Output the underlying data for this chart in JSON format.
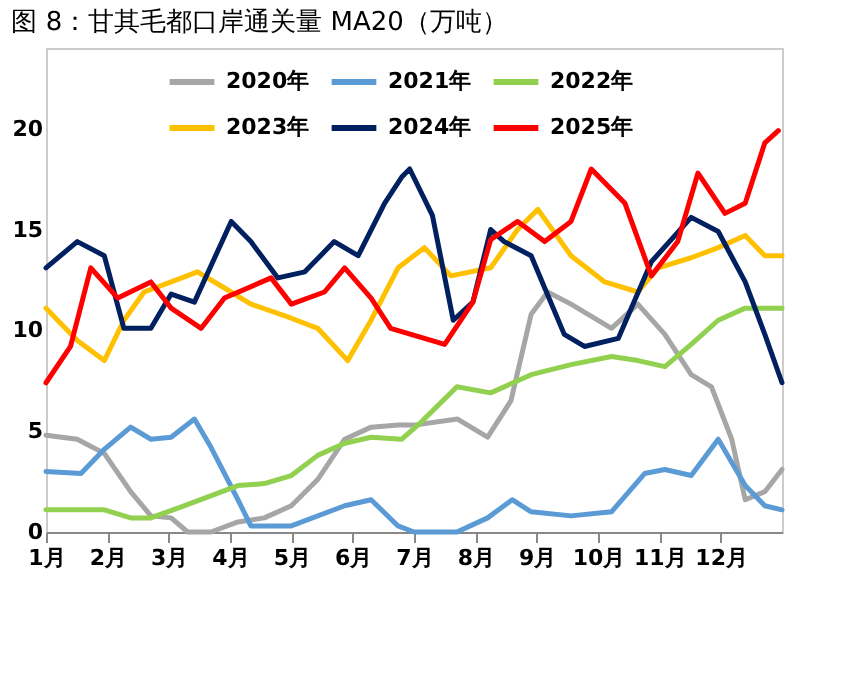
{
  "chart_data": {
    "type": "line",
    "title": "图 8：甘其毛都口岸通关量 MA20（万吨）",
    "xlim": [
      1,
      13
    ],
    "xticks": [
      {
        "value": 1,
        "label": "1月"
      },
      {
        "value": 2,
        "label": "2月"
      },
      {
        "value": 3,
        "label": "3月"
      },
      {
        "value": 4,
        "label": "4月"
      },
      {
        "value": 5,
        "label": "5月"
      },
      {
        "value": 6,
        "label": "6月"
      },
      {
        "value": 7,
        "label": "7月"
      },
      {
        "value": 8,
        "label": "8月"
      },
      {
        "value": 9,
        "label": "9月"
      },
      {
        "value": 10,
        "label": "10月"
      },
      {
        "value": 11,
        "label": "11月"
      },
      {
        "value": 12,
        "label": "12月"
      }
    ],
    "ylim": [
      0,
      24
    ],
    "yticks": [
      0,
      5,
      10,
      15,
      20
    ],
    "grid": false,
    "legend": "top",
    "marker": "none",
    "line_style": "solid",
    "series": [
      {
        "name": "2020年",
        "color": "#a6a6a6",
        "x": [
          1,
          1.51,
          1.95,
          2.38,
          2.71,
          3.04,
          3.31,
          3.69,
          4.13,
          4.56,
          5.0,
          5.43,
          5.87,
          6.3,
          6.74,
          7.0,
          7.71,
          8.2,
          8.58,
          8.91,
          9.18,
          9.56,
          10.22,
          10.65,
          11.09,
          11.52,
          11.85,
          12.18,
          12.4,
          12.72,
          13
        ],
        "values": [
          4.8,
          4.6,
          3.9,
          2.0,
          0.8,
          0.7,
          0,
          0,
          0.5,
          0.7,
          1.3,
          2.6,
          4.6,
          5.2,
          5.3,
          5.3,
          5.6,
          4.7,
          6.5,
          10.8,
          11.9,
          11.3,
          10.1,
          11.3,
          9.8,
          7.8,
          7.2,
          4.6,
          1.6,
          2.0,
          3.1
        ]
      },
      {
        "name": "2021年",
        "color": "#5b9bd5",
        "x": [
          1,
          1.57,
          1.95,
          2.38,
          2.71,
          3.04,
          3.42,
          3.69,
          4.13,
          4.34,
          5.0,
          5.87,
          6.3,
          6.74,
          7.0,
          7.7,
          8.2,
          8.6,
          8.91,
          9.56,
          10.22,
          10.76,
          11.09,
          11.52,
          11.96,
          12.4,
          12.72,
          13
        ],
        "values": [
          3.0,
          2.9,
          4.1,
          5.2,
          4.6,
          4.7,
          5.6,
          4.2,
          1.6,
          0.3,
          0.3,
          1.3,
          1.6,
          0.3,
          0,
          0,
          0.7,
          1.6,
          1.0,
          0.8,
          1.0,
          2.9,
          3.1,
          2.8,
          4.6,
          2.3,
          1.3,
          1.1
        ]
      },
      {
        "name": "2022年",
        "color": "#92d050",
        "x": [
          1,
          1.95,
          2.38,
          2.71,
          3.25,
          4.13,
          4.56,
          5.0,
          5.43,
          5.87,
          6.3,
          6.8,
          7.1,
          7.7,
          8.25,
          8.91,
          9.56,
          10.22,
          10.65,
          11.09,
          11.52,
          11.96,
          12.4,
          13
        ],
        "values": [
          1.1,
          1.1,
          0.7,
          0.7,
          1.3,
          2.3,
          2.4,
          2.8,
          3.8,
          4.4,
          4.7,
          4.6,
          5.4,
          7.2,
          6.9,
          7.8,
          8.3,
          8.7,
          8.5,
          8.2,
          9.3,
          10.5,
          11.1,
          11.1
        ]
      },
      {
        "name": "2023年",
        "color": "#ffc000",
        "x": [
          1,
          1.51,
          1.95,
          2.27,
          2.6,
          3.04,
          3.47,
          3.91,
          4.34,
          5.0,
          5.43,
          5.92,
          6.3,
          6.74,
          7.17,
          7.6,
          8.25,
          8.69,
          9.02,
          9.56,
          10.11,
          10.65,
          10.98,
          11.52,
          11.96,
          12.4,
          12.72,
          13
        ],
        "values": [
          11.1,
          9.5,
          8.5,
          10.5,
          11.9,
          12.4,
          12.9,
          12.1,
          11.3,
          10.6,
          10.1,
          8.5,
          10.5,
          13.1,
          14.1,
          12.7,
          13.1,
          15.0,
          16.0,
          13.7,
          12.4,
          11.9,
          13.1,
          13.6,
          14.1,
          14.7,
          13.7,
          13.7
        ]
      },
      {
        "name": "2024年",
        "color": "#002060",
        "x": [
          1,
          1.51,
          1.95,
          2.27,
          2.71,
          3.04,
          3.42,
          4.02,
          4.34,
          4.78,
          5.22,
          5.7,
          6.09,
          6.52,
          6.8,
          6.93,
          7.3,
          7.64,
          7.96,
          8.25,
          8.47,
          8.91,
          9.45,
          9.78,
          10.33,
          10.87,
          11.52,
          11.96,
          12.4,
          12.72,
          13
        ],
        "values": [
          13.1,
          14.4,
          13.7,
          10.1,
          10.1,
          11.8,
          11.4,
          15.4,
          14.4,
          12.6,
          12.9,
          14.4,
          13.7,
          16.3,
          17.6,
          18.0,
          15.7,
          10.5,
          11.4,
          15.0,
          14.4,
          13.7,
          9.8,
          9.2,
          9.6,
          13.4,
          15.6,
          14.9,
          12.4,
          9.8,
          7.4
        ]
      },
      {
        "name": "2025年",
        "color": "#ff0000",
        "x": [
          1,
          1.4,
          1.73,
          2.17,
          2.71,
          3.04,
          3.53,
          3.91,
          4.67,
          5.0,
          5.54,
          5.87,
          6.3,
          6.62,
          6.95,
          7.5,
          7.96,
          8.25,
          8.69,
          9.13,
          9.56,
          9.89,
          10.44,
          10.87,
          11.3,
          11.63,
          12.07,
          12.4,
          12.72,
          12.94
        ],
        "values": [
          7.4,
          9.2,
          13.1,
          11.6,
          12.4,
          11.1,
          10.1,
          11.6,
          12.6,
          11.3,
          11.9,
          13.1,
          11.6,
          10.1,
          9.8,
          9.3,
          11.4,
          14.5,
          15.4,
          14.4,
          15.4,
          18.0,
          16.3,
          12.7,
          14.4,
          17.8,
          15.8,
          16.3,
          19.3,
          19.9
        ]
      }
    ]
  }
}
